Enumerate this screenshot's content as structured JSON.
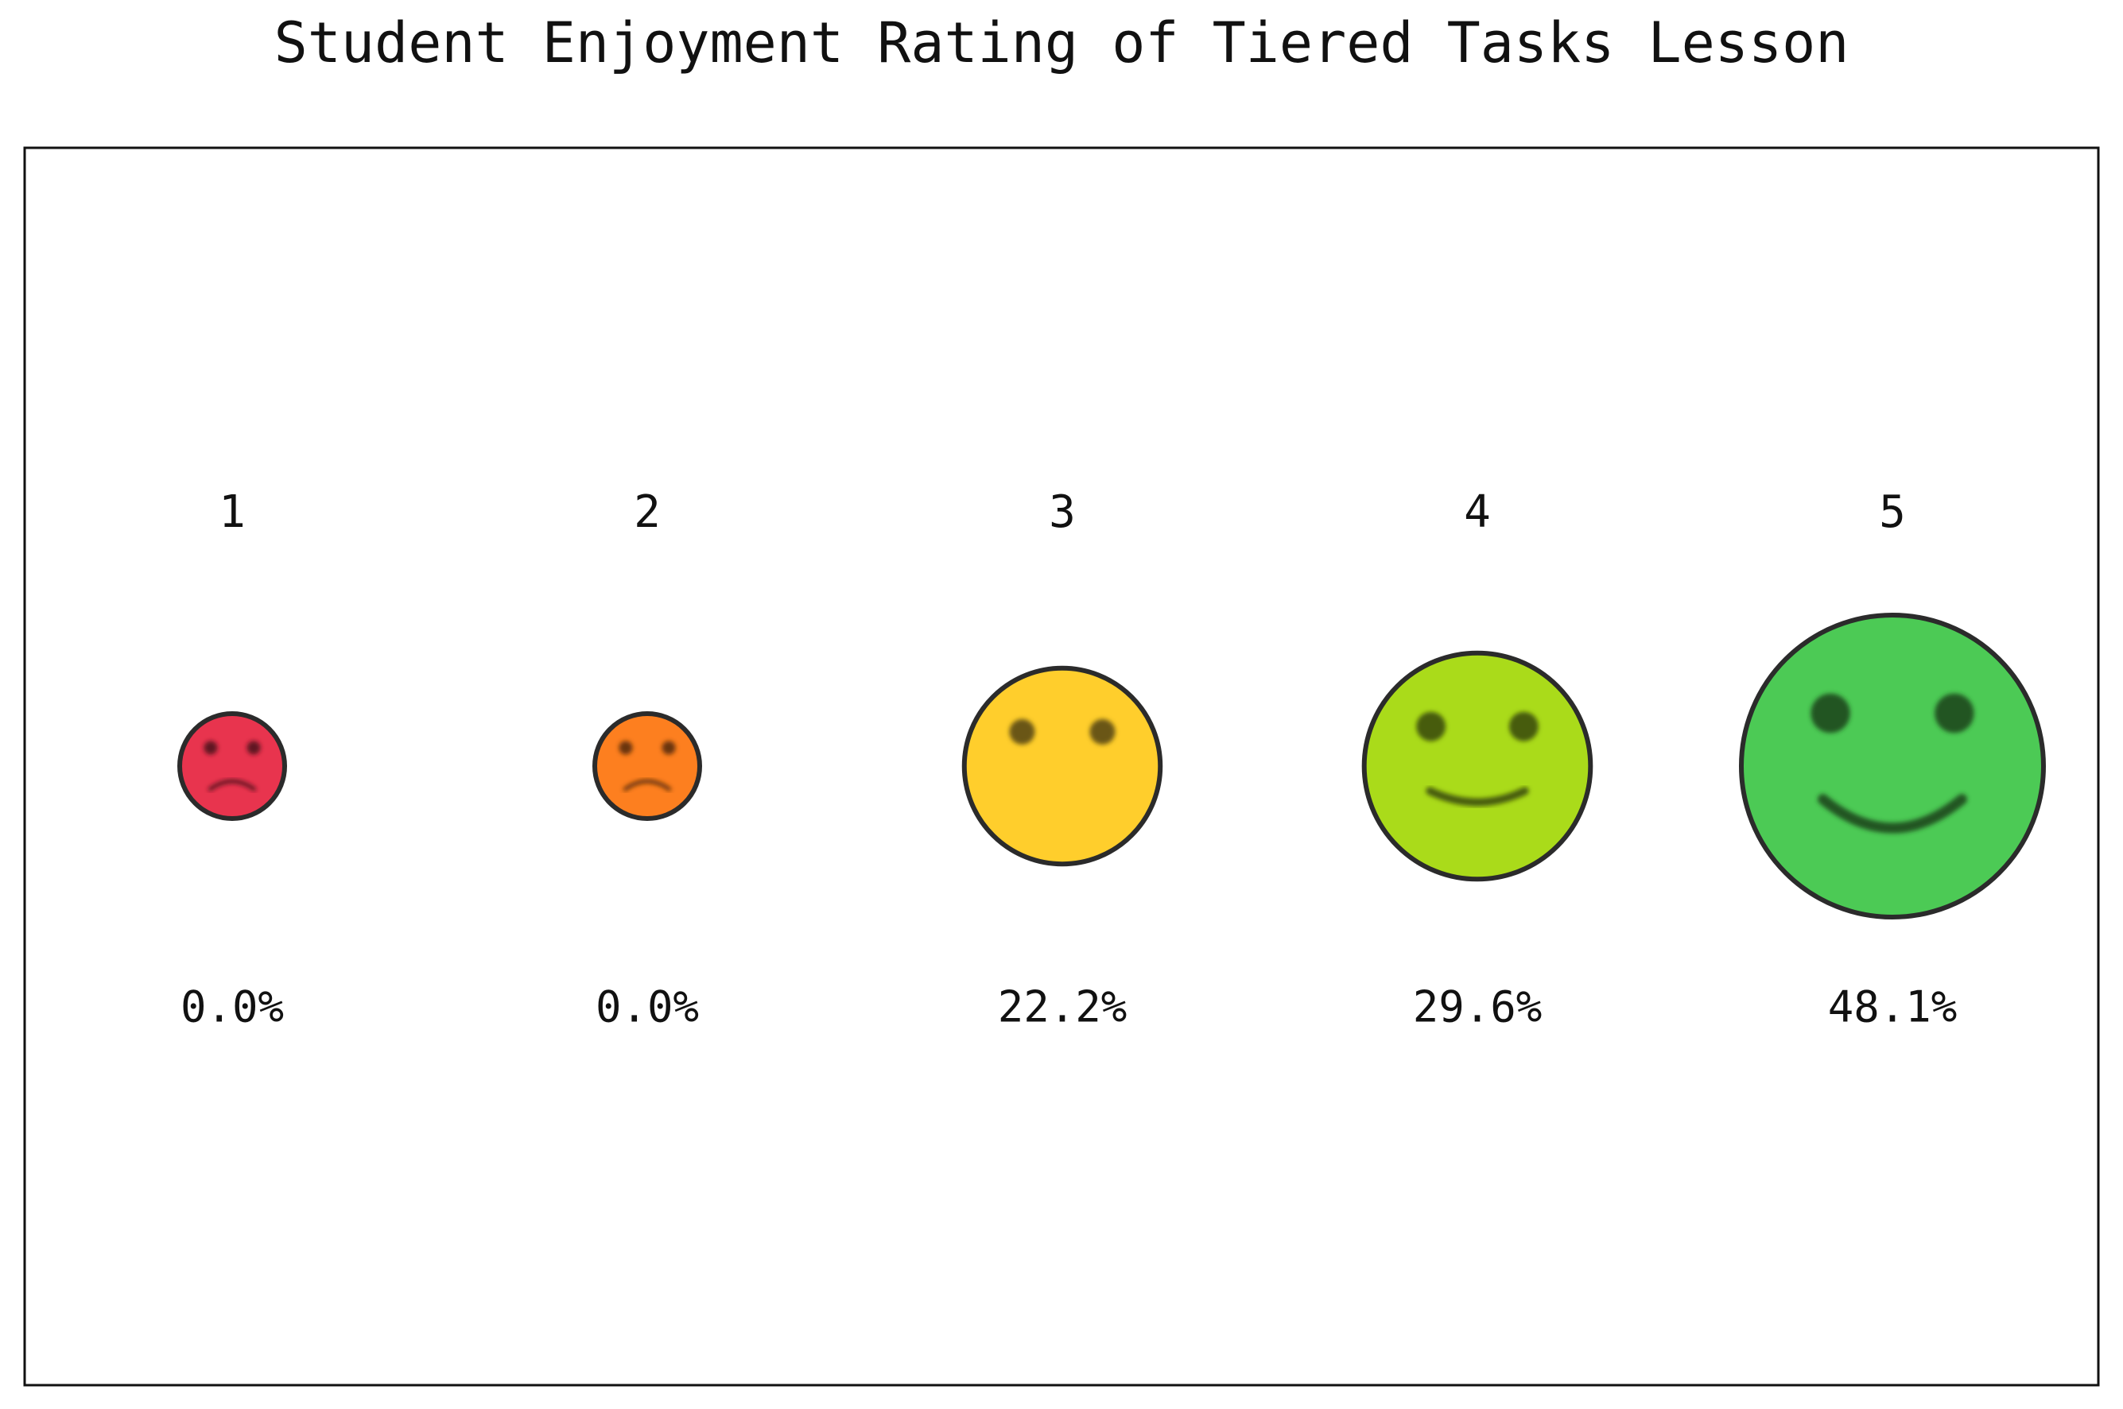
{
  "chart_data": {
    "type": "scatter",
    "title": "Student Enjoyment Rating of Tiered Tasks Lesson",
    "xlabel": "",
    "ylabel": "",
    "grid": false,
    "categories": [
      "1",
      "2",
      "3",
      "4",
      "5"
    ],
    "values": [
      0.0,
      0.0,
      22.2,
      29.6,
      48.1
    ],
    "value_labels": [
      "0.0%",
      "0.0%",
      "22.2%",
      "29.6%",
      "48.1%"
    ],
    "unit": "%",
    "marker": "face",
    "faces": [
      {
        "rating": "1",
        "mood": "very-sad",
        "color": "#E8344E"
      },
      {
        "rating": "2",
        "mood": "sad",
        "color": "#FD7F1F"
      },
      {
        "rating": "3",
        "mood": "neutral",
        "color": "#FFCE2C"
      },
      {
        "rating": "4",
        "mood": "happy",
        "color": "#AADB1A"
      },
      {
        "rating": "5",
        "mood": "very-happy",
        "color": "#4CCA55"
      }
    ],
    "colors": {
      "outline": "#2B2B2B",
      "frame": "#111111",
      "text": "#111111"
    }
  }
}
